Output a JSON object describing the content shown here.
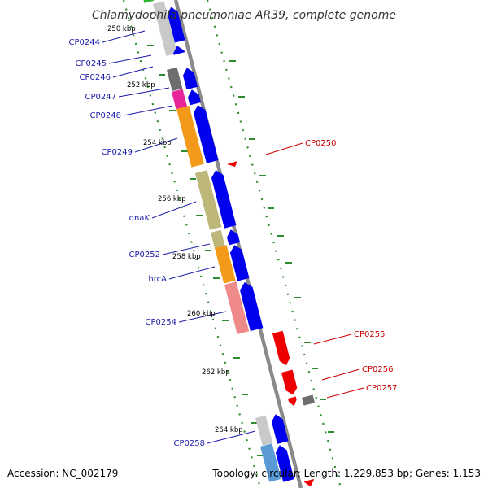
{
  "title": "Chlamydophila pneumoniae AR39, complete genome",
  "footer": {
    "accession": "Accession: NC_002179",
    "summary": "Topology: circular; Length: 1,229,853 bp; Genes: 1,153"
  },
  "colors": {
    "backbone": "#8a8a8a",
    "gc_ticks": "#2e8b2e",
    "forward_label": "#1a1aa6",
    "reverse_label": "#cc0000",
    "forward_cds": "#0000ee",
    "reverse_cds": "#ee0000"
  },
  "kbp_ticks": [
    "250 kbp",
    "252 kbp",
    "254 kbp",
    "256 kbp",
    "258 kbp",
    "260 kbp",
    "262 kbp",
    "264 kbp"
  ],
  "genes_forward": [
    {
      "label": "CP0244"
    },
    {
      "label": "CP0245"
    },
    {
      "label": "CP0246"
    },
    {
      "label": "CP0247"
    },
    {
      "label": "CP0248"
    },
    {
      "label": "CP0249"
    },
    {
      "label": "dnaK"
    },
    {
      "label": "CP0252"
    },
    {
      "label": "hrcA"
    },
    {
      "label": "CP0254"
    },
    {
      "label": "CP0258"
    }
  ],
  "genes_reverse": [
    {
      "label": "CP0250"
    },
    {
      "label": "CP0255"
    },
    {
      "label": "CP0256"
    },
    {
      "label": "CP0257"
    }
  ]
}
